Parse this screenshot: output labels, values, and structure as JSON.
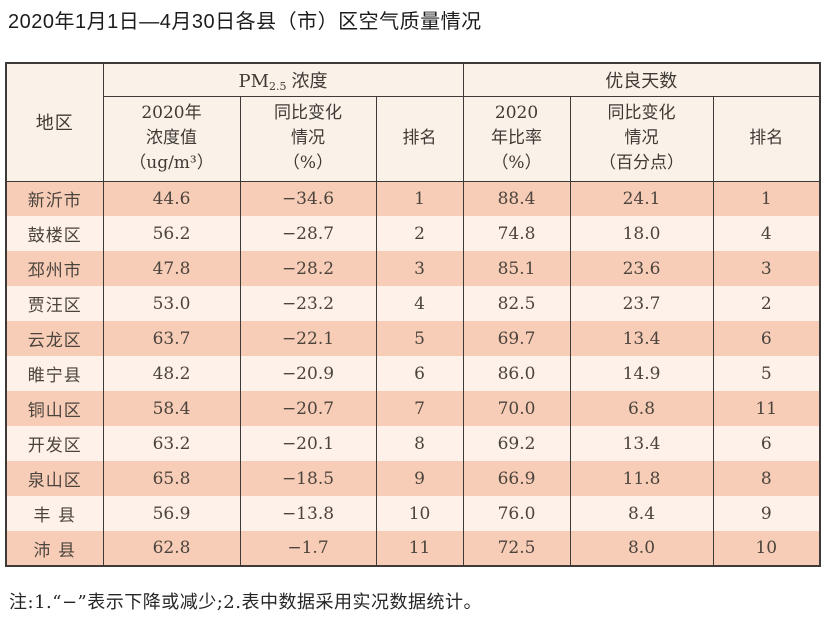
{
  "page": {
    "title": "2020年1月1日—4月30日各县（市）区空气质量情况",
    "footnote": "注:1.“−”表示下降或减少;2.表中数据采用实况数据统计。"
  },
  "colors": {
    "row_odd": "#f8cdb7",
    "row_even": "#fdf1e9",
    "header_bg": "#faf2e8",
    "border": "#3e3a38",
    "cell_text": "#4b443d"
  },
  "table": {
    "header": {
      "region": "地区",
      "pm_group": {
        "prefix": "PM",
        "sub": "2.5",
        "suffix": "浓度"
      },
      "good_days_group": "优良天数",
      "sub": {
        "pm_value": "2020年\n浓度值\n（ug/m³）",
        "pm_change": "同比变化\n情况\n（%）",
        "pm_rank": "排名",
        "gd_ratio": "2020\n年比率\n（%）",
        "gd_change": "同比变化\n情况\n（百分点）",
        "gd_rank": "排名"
      }
    },
    "rows": [
      {
        "region": "新沂市",
        "pm_value": "44.6",
        "pm_change": "−34.6",
        "pm_rank": "1",
        "gd_ratio": "88.4",
        "gd_change": "24.1",
        "gd_rank": "1"
      },
      {
        "region": "鼓楼区",
        "pm_value": "56.2",
        "pm_change": "−28.7",
        "pm_rank": "2",
        "gd_ratio": "74.8",
        "gd_change": "18.0",
        "gd_rank": "4"
      },
      {
        "region": "邳州市",
        "pm_value": "47.8",
        "pm_change": "−28.2",
        "pm_rank": "3",
        "gd_ratio": "85.1",
        "gd_change": "23.6",
        "gd_rank": "3"
      },
      {
        "region": "贾汪区",
        "pm_value": "53.0",
        "pm_change": "−23.2",
        "pm_rank": "4",
        "gd_ratio": "82.5",
        "gd_change": "23.7",
        "gd_rank": "2"
      },
      {
        "region": "云龙区",
        "pm_value": "63.7",
        "pm_change": "−22.1",
        "pm_rank": "5",
        "gd_ratio": "69.7",
        "gd_change": "13.4",
        "gd_rank": "6"
      },
      {
        "region": "睢宁县",
        "pm_value": "48.2",
        "pm_change": "−20.9",
        "pm_rank": "6",
        "gd_ratio": "86.0",
        "gd_change": "14.9",
        "gd_rank": "5"
      },
      {
        "region": "铜山区",
        "pm_value": "58.4",
        "pm_change": "−20.7",
        "pm_rank": "7",
        "gd_ratio": "70.0",
        "gd_change": "6.8",
        "gd_rank": "11"
      },
      {
        "region": "开发区",
        "pm_value": "63.2",
        "pm_change": "−20.1",
        "pm_rank": "8",
        "gd_ratio": "69.2",
        "gd_change": "13.4",
        "gd_rank": "6"
      },
      {
        "region": "泉山区",
        "pm_value": "65.8",
        "pm_change": "−18.5",
        "pm_rank": "9",
        "gd_ratio": "66.9",
        "gd_change": "11.8",
        "gd_rank": "8"
      },
      {
        "region": "丰 县",
        "pm_value": "56.9",
        "pm_change": "−13.8",
        "pm_rank": "10",
        "gd_ratio": "76.0",
        "gd_change": "8.4",
        "gd_rank": "9"
      },
      {
        "region": "沛 县",
        "pm_value": "62.8",
        "pm_change": "−1.7",
        "pm_rank": "11",
        "gd_ratio": "72.5",
        "gd_change": "8.0",
        "gd_rank": "10"
      }
    ]
  }
}
